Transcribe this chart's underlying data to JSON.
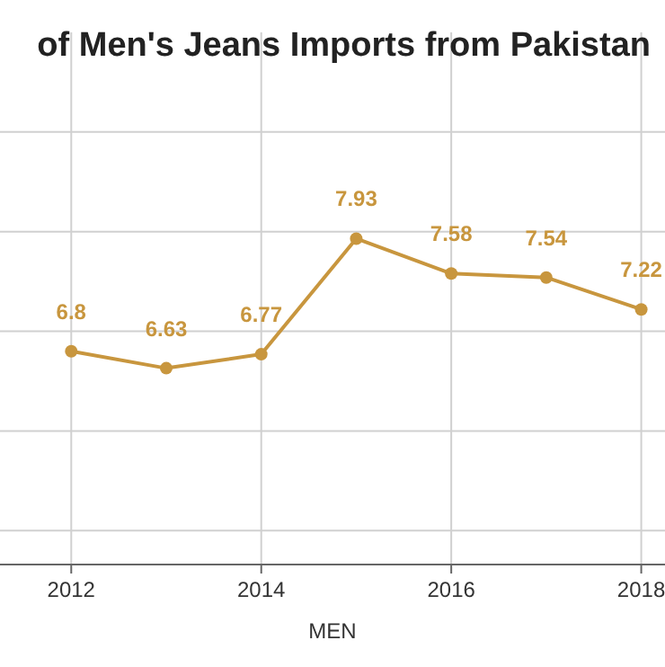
{
  "chart_data": {
    "type": "line",
    "title": "of Men's Jeans Imports from Pakistan",
    "xlabel": "MEN",
    "x": [
      2012,
      2013,
      2014,
      2015,
      2016,
      2017,
      2018
    ],
    "series": [
      {
        "color": "#c8963e",
        "values": [
          6.8,
          6.63,
          6.77,
          7.93,
          7.58,
          7.54,
          7.22
        ]
      }
    ],
    "xlim": [
      2011.25,
      2018.25
    ],
    "xticks": [
      2012,
      2014,
      2016,
      2018
    ],
    "ylim": [
      4.66,
      10
    ],
    "yticks": [
      {
        "value": 5,
        "label": null
      },
      {
        "value": 6,
        "label": null
      },
      {
        "value": 7,
        "label": null
      },
      {
        "value": 8,
        "label": null
      },
      {
        "value": 9,
        "label": null
      }
    ],
    "tick_labels": "x",
    "grid": true,
    "marker": "circle",
    "line_style": "solid",
    "data_labels": true
  }
}
